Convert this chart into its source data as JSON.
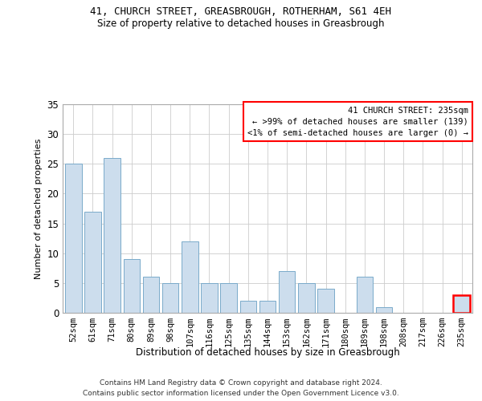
{
  "title_line1": "41, CHURCH STREET, GREASBROUGH, ROTHERHAM, S61 4EH",
  "title_line2": "Size of property relative to detached houses in Greasbrough",
  "xlabel": "Distribution of detached houses by size in Greasbrough",
  "ylabel": "Number of detached properties",
  "categories": [
    "52sqm",
    "61sqm",
    "71sqm",
    "80sqm",
    "89sqm",
    "98sqm",
    "107sqm",
    "116sqm",
    "125sqm",
    "135sqm",
    "144sqm",
    "153sqm",
    "162sqm",
    "171sqm",
    "180sqm",
    "189sqm",
    "198sqm",
    "208sqm",
    "217sqm",
    "226sqm",
    "235sqm"
  ],
  "values": [
    25,
    17,
    26,
    9,
    6,
    5,
    12,
    5,
    5,
    2,
    2,
    7,
    5,
    4,
    0,
    6,
    1,
    0,
    0,
    0,
    3
  ],
  "bar_color": "#ccdded",
  "bar_edge_color": "#7aaaca",
  "highlight_index": 20,
  "highlight_bar_edge_color": "red",
  "box_text_line1": "41 CHURCH STREET: 235sqm",
  "box_text_line2": "← >99% of detached houses are smaller (139)",
  "box_text_line3": "<1% of semi-detached houses are larger (0) →",
  "box_edge_color": "red",
  "box_fill": "white",
  "ylim": [
    0,
    35
  ],
  "yticks": [
    0,
    5,
    10,
    15,
    20,
    25,
    30,
    35
  ],
  "footer_line1": "Contains HM Land Registry data © Crown copyright and database right 2024.",
  "footer_line2": "Contains public sector information licensed under the Open Government Licence v3.0.",
  "background_color": "white",
  "grid_color": "#cccccc"
}
